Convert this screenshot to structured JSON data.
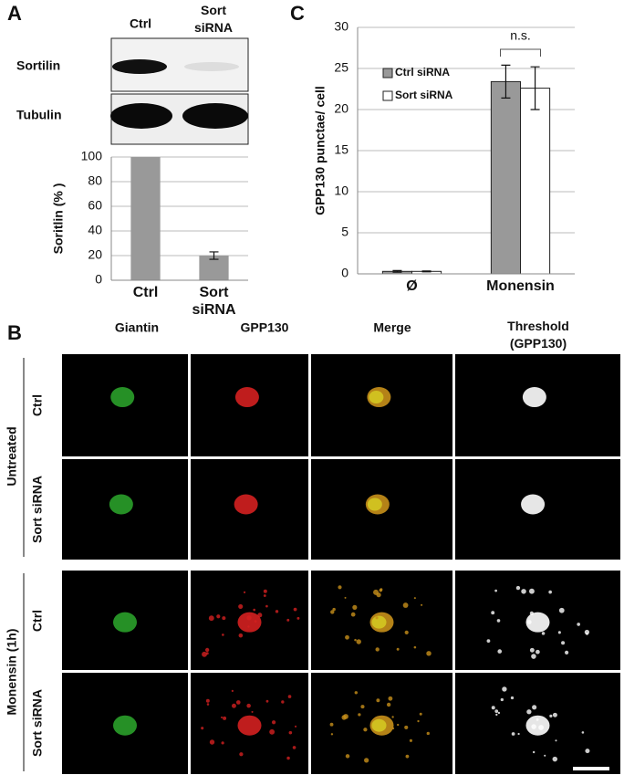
{
  "panel_letters": [
    "A",
    "B",
    "C"
  ],
  "blot": {
    "columns": [
      "Ctrl",
      "Sort siRNA"
    ],
    "rows": [
      "Sortilin",
      "Tubulin"
    ]
  },
  "chart_data": [
    {
      "type": "bar",
      "y_label": "Soritlin (% )",
      "categories": [
        "Ctrl",
        "Sort siRNA"
      ],
      "values": [
        100,
        20
      ],
      "errors": [
        null,
        3
      ],
      "color": "#999999",
      "ylim": [
        0,
        100
      ],
      "yticks": [
        0,
        20,
        40,
        60,
        80,
        100
      ],
      "grid": true
    },
    {
      "type": "bar",
      "y_label": "GPP130 punctae/ cell",
      "categories": [
        "Ø",
        "Monensin"
      ],
      "series": [
        {
          "name": "Ctrl siRNA",
          "color": "#999999",
          "values": [
            0.3,
            23.4
          ],
          "errors": [
            0.1,
            2.0
          ]
        },
        {
          "name": "Sort siRNA",
          "color": "#ffffff",
          "values": [
            0.3,
            22.6
          ],
          "errors": [
            0.05,
            2.6
          ]
        }
      ],
      "ylim": [
        0,
        30
      ],
      "yticks": [
        0,
        5,
        10,
        15,
        20,
        25,
        30
      ],
      "grid": true,
      "legend": "upper left",
      "annotation": "n.s."
    }
  ],
  "microscopy": {
    "columns": [
      "Giantin",
      "GPP130",
      "Merge",
      "Threshold (GPP130)"
    ],
    "conditions": [
      {
        "label": "Untreated",
        "rows": [
          "Ctrl",
          "Sort siRNA"
        ]
      },
      {
        "label": "Monensin (1h)",
        "rows": [
          "Ctrl",
          "Sort siRNA"
        ]
      }
    ]
  }
}
